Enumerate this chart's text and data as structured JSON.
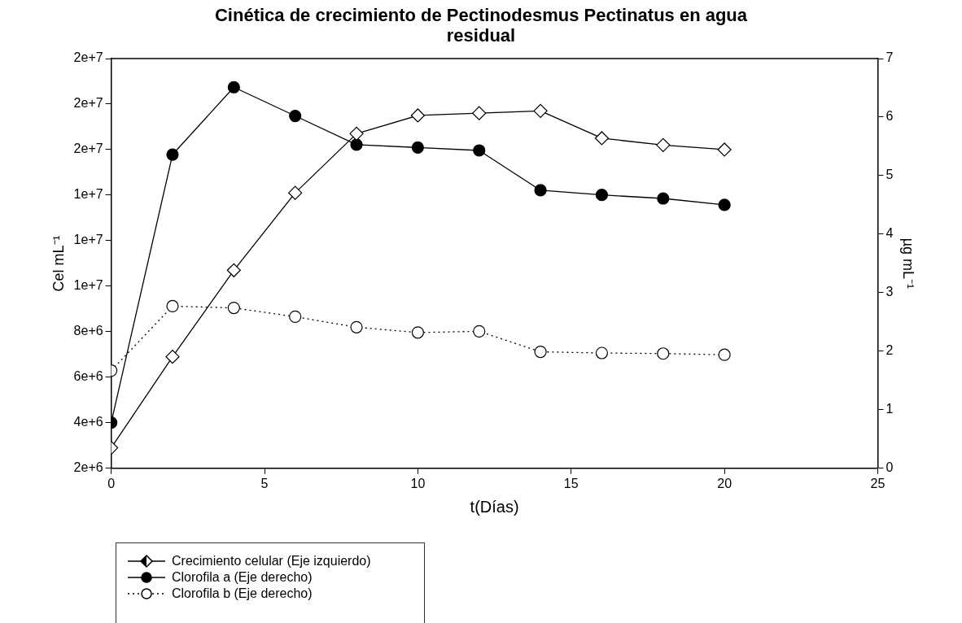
{
  "chart_data": {
    "type": "line",
    "title": "Cinética de crecimiento de Pectinodesmus Pectinatus en agua residual",
    "xlabel": "t(Días)",
    "ylabel": "Cel mL⁻¹",
    "y2label": "µg mL⁻¹",
    "x": [
      0,
      2,
      4,
      6,
      8,
      10,
      12,
      14,
      16,
      18,
      20
    ],
    "series": [
      {
        "name": "Crecimiento celular (Eje izquierdo)",
        "color": "#000000",
        "marker": "diamond",
        "line_style": "solid",
        "values": [
          2900000,
          6900000,
          10700000,
          14100000,
          16700000,
          17500000,
          17600000,
          17700000,
          16500000,
          16200000,
          16000000
        ]
      },
      {
        "name": "Clorofila a (Eje derecho)",
        "color": "#000000",
        "marker": "circle",
        "line_style": "solid",
        "axis": "y2",
        "values": [
          0.78,
          5.36,
          6.51,
          6.02,
          5.53,
          5.48,
          5.43,
          4.75,
          4.67,
          4.61,
          4.5
        ]
      },
      {
        "name": "Clorofila b (Eje derecho)",
        "color": "#000000",
        "marker": "circle",
        "line_style": "dotted",
        "axis": "y2",
        "values": [
          1.67,
          2.77,
          2.74,
          2.59,
          2.41,
          2.32,
          2.34,
          1.99,
          1.97,
          1.96,
          1.94
        ]
      }
    ],
    "xlim": [
      0,
      25
    ],
    "xticks": [
      0,
      5,
      10,
      15,
      20,
      25
    ],
    "ylim": [
      2000000,
      20000000
    ],
    "yticks": [
      {
        "value": 2000000,
        "label": "2e+6"
      },
      {
        "value": 4000000,
        "label": "4e+6"
      },
      {
        "value": 6000000,
        "label": "6e+6"
      },
      {
        "value": 8000000,
        "label": "8e+6"
      },
      {
        "value": 10000000,
        "label": "1e+7"
      },
      {
        "value": 12000000,
        "label": "1e+7"
      },
      {
        "value": 14000000,
        "label": "1e+7"
      },
      {
        "value": 16000000,
        "label": "2e+7"
      },
      {
        "value": 18000000,
        "label": "2e+7"
      },
      {
        "value": 20000000,
        "label": "2e+7"
      }
    ],
    "y2lim": [
      0,
      7
    ],
    "y2ticks": [
      0,
      1,
      2,
      3,
      4,
      5,
      6,
      7
    ],
    "grid": false,
    "legend": "bottom left"
  }
}
